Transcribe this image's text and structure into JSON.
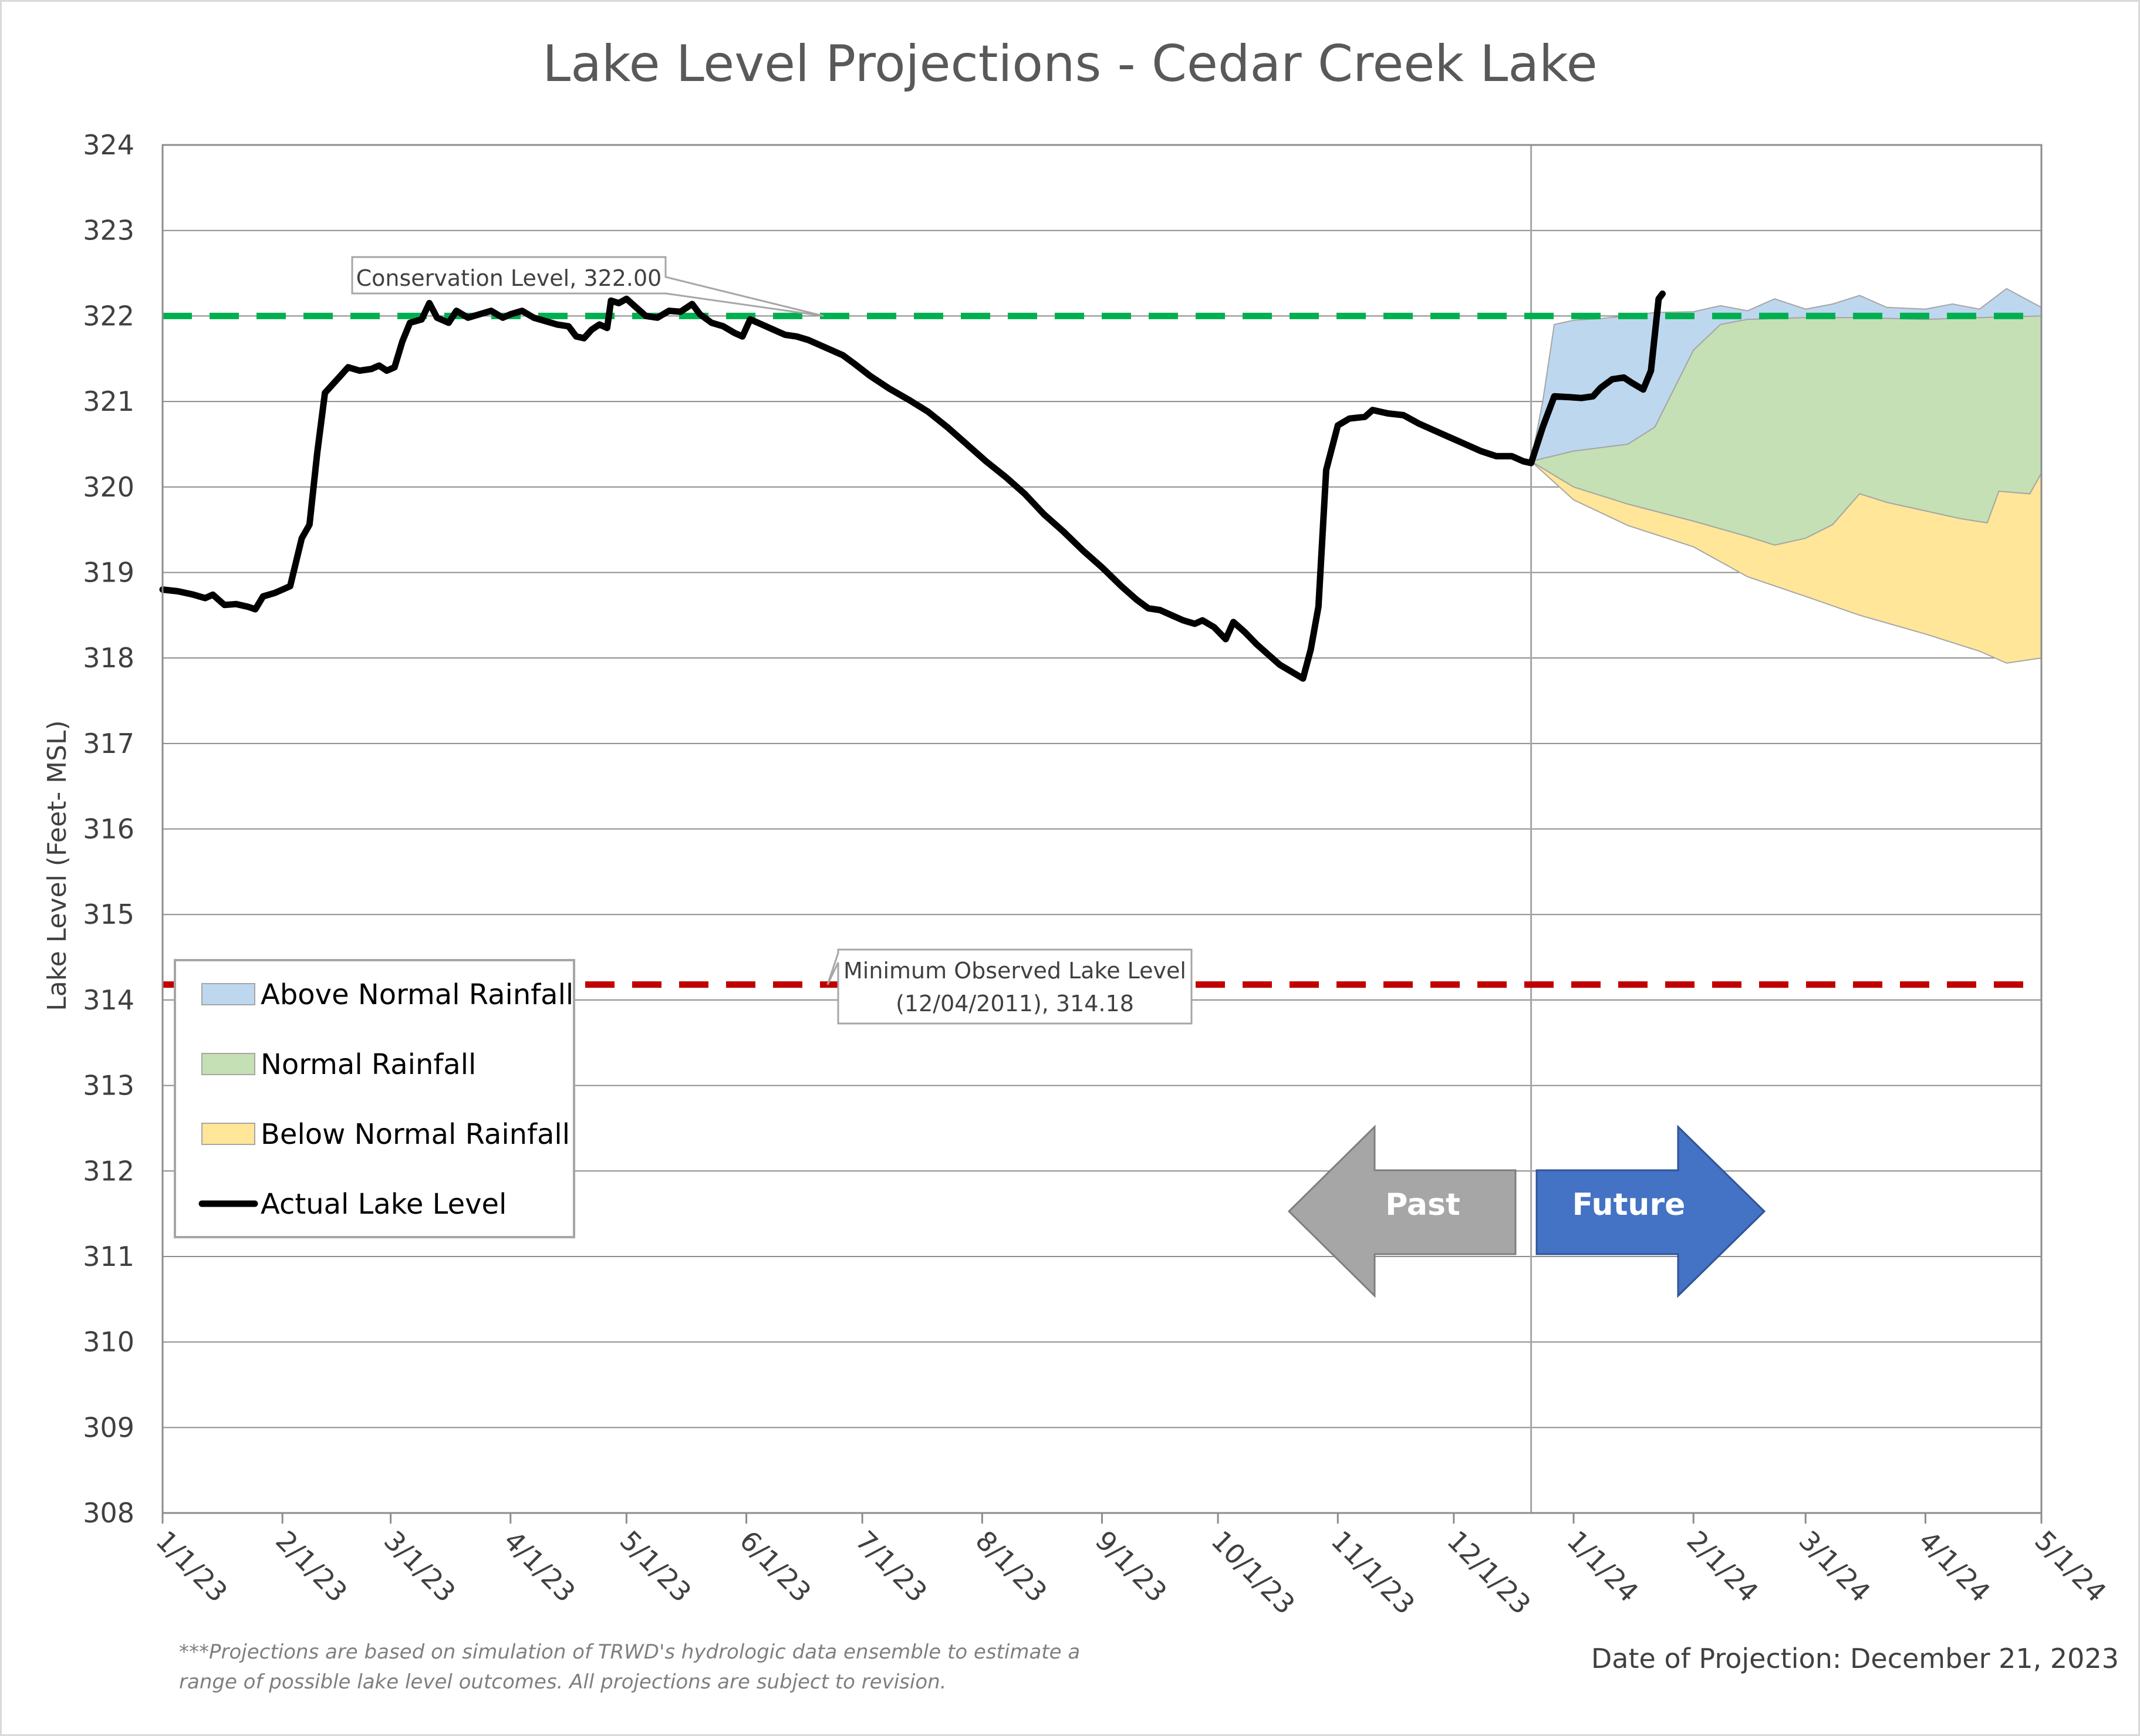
{
  "chart_data": {
    "type": "area",
    "title": "Lake Level Projections - Cedar Creek Lake",
    "ylabel": "Lake Level (Feet- MSL)",
    "xlabel": "",
    "ylim": [
      308,
      324
    ],
    "yticks": [
      308,
      309,
      310,
      311,
      312,
      313,
      314,
      315,
      316,
      317,
      318,
      319,
      320,
      321,
      322,
      323,
      324
    ],
    "xlim": [
      "2023-01-01",
      "2024-05-01"
    ],
    "xticks": [
      {
        "date": "2023-01-01",
        "label": "1/1/23"
      },
      {
        "date": "2023-02-01",
        "label": "2/1/23"
      },
      {
        "date": "2023-03-01",
        "label": "3/1/23"
      },
      {
        "date": "2023-04-01",
        "label": "4/1/23"
      },
      {
        "date": "2023-05-01",
        "label": "5/1/23"
      },
      {
        "date": "2023-06-01",
        "label": "6/1/23"
      },
      {
        "date": "2023-07-01",
        "label": "7/1/23"
      },
      {
        "date": "2023-08-01",
        "label": "8/1/23"
      },
      {
        "date": "2023-09-01",
        "label": "9/1/23"
      },
      {
        "date": "2023-10-01",
        "label": "10/1/23"
      },
      {
        "date": "2023-11-01",
        "label": "11/1/23"
      },
      {
        "date": "2023-12-01",
        "label": "12/1/23"
      },
      {
        "date": "2024-01-01",
        "label": "1/1/24"
      },
      {
        "date": "2024-02-01",
        "label": "2/1/24"
      },
      {
        "date": "2024-03-01",
        "label": "3/1/24"
      },
      {
        "date": "2024-04-01",
        "label": "4/1/24"
      },
      {
        "date": "2024-05-01",
        "label": "5/1/24"
      }
    ],
    "grid": true,
    "projection_date": "2023-12-21",
    "reference_lines": [
      {
        "name": "conservation",
        "value": 322.0,
        "color": "#00b050",
        "style": "dashed",
        "label": "Conservation Level, 322.00",
        "callout_date": "2023-06-21"
      },
      {
        "name": "minimum",
        "value": 314.18,
        "color": "#c00000",
        "style": "dashed",
        "label_lines": [
          "Minimum Observed Lake Level",
          "(12/04/2011), 314.18"
        ],
        "callout_date": "2023-06-22"
      }
    ],
    "series": [
      {
        "name": "Actual Lake Level",
        "color": "#000000",
        "kind": "line",
        "points": [
          [
            "2023-01-01",
            318.8
          ],
          [
            "2023-01-05",
            318.78
          ],
          [
            "2023-01-09",
            318.74
          ],
          [
            "2023-01-12",
            318.7
          ],
          [
            "2023-01-14",
            318.74
          ],
          [
            "2023-01-17",
            318.62
          ],
          [
            "2023-01-20",
            318.63
          ],
          [
            "2023-01-23",
            318.6
          ],
          [
            "2023-01-25",
            318.57
          ],
          [
            "2023-01-27",
            318.72
          ],
          [
            "2023-01-30",
            318.76
          ],
          [
            "2023-02-01",
            318.8
          ],
          [
            "2023-02-03",
            318.84
          ],
          [
            "2023-02-06",
            319.4
          ],
          [
            "2023-02-08",
            319.56
          ],
          [
            "2023-02-10",
            320.4
          ],
          [
            "2023-02-12",
            321.1
          ],
          [
            "2023-02-14",
            321.2
          ],
          [
            "2023-02-16",
            321.3
          ],
          [
            "2023-02-18",
            321.4
          ],
          [
            "2023-02-21",
            321.36
          ],
          [
            "2023-02-24",
            321.38
          ],
          [
            "2023-02-26",
            321.42
          ],
          [
            "2023-02-28",
            321.36
          ],
          [
            "2023-03-02",
            321.4
          ],
          [
            "2023-03-04",
            321.7
          ],
          [
            "2023-03-06",
            321.92
          ],
          [
            "2023-03-09",
            321.96
          ],
          [
            "2023-03-11",
            322.15
          ],
          [
            "2023-03-13",
            321.98
          ],
          [
            "2023-03-16",
            321.92
          ],
          [
            "2023-03-18",
            322.06
          ],
          [
            "2023-03-21",
            321.98
          ],
          [
            "2023-03-24",
            322.02
          ],
          [
            "2023-03-27",
            322.06
          ],
          [
            "2023-03-30",
            321.98
          ],
          [
            "2023-04-01",
            322.02
          ],
          [
            "2023-04-04",
            322.06
          ],
          [
            "2023-04-07",
            321.98
          ],
          [
            "2023-04-10",
            321.94
          ],
          [
            "2023-04-13",
            321.9
          ],
          [
            "2023-04-16",
            321.88
          ],
          [
            "2023-04-18",
            321.76
          ],
          [
            "2023-04-20",
            321.74
          ],
          [
            "2023-04-22",
            321.84
          ],
          [
            "2023-04-24",
            321.9
          ],
          [
            "2023-04-26",
            321.86
          ],
          [
            "2023-04-27",
            322.18
          ],
          [
            "2023-04-29",
            322.15
          ],
          [
            "2023-05-01",
            322.2
          ],
          [
            "2023-05-03",
            322.12
          ],
          [
            "2023-05-06",
            322.0
          ],
          [
            "2023-05-09",
            321.98
          ],
          [
            "2023-05-12",
            322.06
          ],
          [
            "2023-05-15",
            322.05
          ],
          [
            "2023-05-18",
            322.14
          ],
          [
            "2023-05-20",
            322.02
          ],
          [
            "2023-05-23",
            321.92
          ],
          [
            "2023-05-26",
            321.88
          ],
          [
            "2023-05-29",
            321.8
          ],
          [
            "2023-05-31",
            321.76
          ],
          [
            "2023-06-02",
            321.96
          ],
          [
            "2023-06-05",
            321.9
          ],
          [
            "2023-06-08",
            321.84
          ],
          [
            "2023-06-11",
            321.78
          ],
          [
            "2023-06-14",
            321.76
          ],
          [
            "2023-06-17",
            321.72
          ],
          [
            "2023-06-20",
            321.66
          ],
          [
            "2023-06-23",
            321.6
          ],
          [
            "2023-06-26",
            321.54
          ],
          [
            "2023-06-29",
            321.44
          ],
          [
            "2023-07-03",
            321.3
          ],
          [
            "2023-07-08",
            321.15
          ],
          [
            "2023-07-13",
            321.02
          ],
          [
            "2023-07-18",
            320.88
          ],
          [
            "2023-07-23",
            320.7
          ],
          [
            "2023-07-28",
            320.5
          ],
          [
            "2023-08-02",
            320.3
          ],
          [
            "2023-08-07",
            320.12
          ],
          [
            "2023-08-12",
            319.92
          ],
          [
            "2023-08-17",
            319.68
          ],
          [
            "2023-08-22",
            319.48
          ],
          [
            "2023-08-27",
            319.26
          ],
          [
            "2023-09-01",
            319.06
          ],
          [
            "2023-09-06",
            318.84
          ],
          [
            "2023-09-10",
            318.68
          ],
          [
            "2023-09-13",
            318.58
          ],
          [
            "2023-09-16",
            318.56
          ],
          [
            "2023-09-19",
            318.5
          ],
          [
            "2023-09-22",
            318.44
          ],
          [
            "2023-09-25",
            318.4
          ],
          [
            "2023-09-27",
            318.44
          ],
          [
            "2023-09-30",
            318.36
          ],
          [
            "2023-10-03",
            318.22
          ],
          [
            "2023-10-05",
            318.42
          ],
          [
            "2023-10-08",
            318.3
          ],
          [
            "2023-10-11",
            318.16
          ],
          [
            "2023-10-14",
            318.04
          ],
          [
            "2023-10-17",
            317.92
          ],
          [
            "2023-10-20",
            317.84
          ],
          [
            "2023-10-23",
            317.76
          ],
          [
            "2023-10-25",
            318.1
          ],
          [
            "2023-10-27",
            318.6
          ],
          [
            "2023-10-29",
            320.2
          ],
          [
            "2023-11-01",
            320.72
          ],
          [
            "2023-11-04",
            320.8
          ],
          [
            "2023-11-08",
            320.82
          ],
          [
            "2023-11-10",
            320.9
          ],
          [
            "2023-11-14",
            320.86
          ],
          [
            "2023-11-18",
            320.84
          ],
          [
            "2023-11-22",
            320.74
          ],
          [
            "2023-11-26",
            320.66
          ],
          [
            "2023-11-30",
            320.58
          ],
          [
            "2023-12-04",
            320.5
          ],
          [
            "2023-12-08",
            320.42
          ],
          [
            "2023-12-12",
            320.36
          ],
          [
            "2023-12-16",
            320.36
          ],
          [
            "2023-12-19",
            320.3
          ],
          [
            "2023-12-21",
            320.28
          ],
          [
            "2023-12-24",
            320.7
          ],
          [
            "2023-12-27",
            321.06
          ],
          [
            "2023-12-31",
            321.05
          ],
          [
            "2024-01-03",
            321.04
          ],
          [
            "2024-01-06",
            321.06
          ],
          [
            "2024-01-08",
            321.16
          ],
          [
            "2024-01-11",
            321.26
          ],
          [
            "2024-01-14",
            321.28
          ],
          [
            "2024-01-16",
            321.22
          ],
          [
            "2024-01-19",
            321.14
          ],
          [
            "2024-01-21",
            321.36
          ],
          [
            "2024-01-23",
            322.2
          ],
          [
            "2024-01-24",
            322.26
          ]
        ]
      },
      {
        "name": "Above Normal Rainfall",
        "color": "#bdd7ee",
        "kind": "band",
        "upper": [
          [
            "2023-12-21",
            320.3
          ],
          [
            "2023-12-24",
            321.0
          ],
          [
            "2023-12-27",
            321.9
          ],
          [
            "2024-01-01",
            321.95
          ],
          [
            "2024-01-08",
            321.97
          ],
          [
            "2024-01-15",
            322.0
          ],
          [
            "2024-01-22",
            322.04
          ],
          [
            "2024-02-01",
            322.05
          ],
          [
            "2024-02-08",
            322.12
          ],
          [
            "2024-02-15",
            322.06
          ],
          [
            "2024-02-22",
            322.2
          ],
          [
            "2024-03-01",
            322.08
          ],
          [
            "2024-03-08",
            322.14
          ],
          [
            "2024-03-15",
            322.24
          ],
          [
            "2024-03-22",
            322.1
          ],
          [
            "2024-04-01",
            322.08
          ],
          [
            "2024-04-08",
            322.14
          ],
          [
            "2024-04-15",
            322.08
          ],
          [
            "2024-04-22",
            322.32
          ],
          [
            "2024-05-01",
            322.1
          ]
        ],
        "lower": [
          [
            "2023-12-21",
            320.3
          ],
          [
            "2024-01-01",
            320.42
          ],
          [
            "2024-01-15",
            320.5
          ],
          [
            "2024-01-22",
            320.7
          ],
          [
            "2024-02-01",
            321.6
          ],
          [
            "2024-02-08",
            321.9
          ],
          [
            "2024-02-15",
            321.96
          ],
          [
            "2024-03-01",
            321.98
          ],
          [
            "2024-03-15",
            321.98
          ],
          [
            "2024-04-01",
            321.96
          ],
          [
            "2024-04-15",
            321.98
          ],
          [
            "2024-05-01",
            322.0
          ]
        ]
      },
      {
        "name": "Normal Rainfall",
        "color": "#c5e0b4",
        "kind": "band",
        "upper": [
          [
            "2023-12-21",
            320.3
          ],
          [
            "2024-01-01",
            320.42
          ],
          [
            "2024-01-15",
            320.5
          ],
          [
            "2024-01-22",
            320.7
          ],
          [
            "2024-02-01",
            321.6
          ],
          [
            "2024-02-08",
            321.9
          ],
          [
            "2024-02-15",
            321.96
          ],
          [
            "2024-03-01",
            321.98
          ],
          [
            "2024-03-15",
            321.98
          ],
          [
            "2024-04-01",
            321.96
          ],
          [
            "2024-04-15",
            321.98
          ],
          [
            "2024-05-01",
            322.0
          ]
        ],
        "lower": [
          [
            "2023-12-21",
            320.3
          ],
          [
            "2024-01-01",
            320.0
          ],
          [
            "2024-01-15",
            319.8
          ],
          [
            "2024-02-01",
            319.6
          ],
          [
            "2024-02-15",
            319.42
          ],
          [
            "2024-02-22",
            319.32
          ],
          [
            "2024-03-01",
            319.4
          ],
          [
            "2024-03-08",
            319.56
          ],
          [
            "2024-03-15",
            319.92
          ],
          [
            "2024-03-22",
            319.82
          ],
          [
            "2024-04-01",
            319.72
          ],
          [
            "2024-04-10",
            319.63
          ],
          [
            "2024-04-17",
            319.58
          ],
          [
            "2024-04-20",
            319.95
          ],
          [
            "2024-04-28",
            319.92
          ],
          [
            "2024-05-01",
            320.16
          ]
        ]
      },
      {
        "name": "Below Normal Rainfall",
        "color": "#ffe699",
        "kind": "band",
        "upper": [
          [
            "2023-12-21",
            320.3
          ],
          [
            "2024-01-01",
            320.0
          ],
          [
            "2024-01-15",
            319.8
          ],
          [
            "2024-02-01",
            319.6
          ],
          [
            "2024-02-15",
            319.42
          ],
          [
            "2024-02-22",
            319.32
          ],
          [
            "2024-03-01",
            319.4
          ],
          [
            "2024-03-08",
            319.56
          ],
          [
            "2024-03-15",
            319.92
          ],
          [
            "2024-03-22",
            319.82
          ],
          [
            "2024-04-01",
            319.72
          ],
          [
            "2024-04-10",
            319.63
          ],
          [
            "2024-04-17",
            319.58
          ],
          [
            "2024-04-20",
            319.95
          ],
          [
            "2024-04-28",
            319.92
          ],
          [
            "2024-05-01",
            320.16
          ]
        ],
        "lower": [
          [
            "2023-12-21",
            320.3
          ],
          [
            "2024-01-01",
            319.85
          ],
          [
            "2024-01-15",
            319.55
          ],
          [
            "2024-02-01",
            319.3
          ],
          [
            "2024-02-15",
            318.95
          ],
          [
            "2024-03-01",
            318.72
          ],
          [
            "2024-03-15",
            318.5
          ],
          [
            "2024-04-01",
            318.28
          ],
          [
            "2024-04-15",
            318.08
          ],
          [
            "2024-04-22",
            317.94
          ],
          [
            "2024-05-01",
            318.0
          ]
        ]
      }
    ],
    "legend": {
      "placement": "bottom-left",
      "entries": [
        {
          "label": "Above Normal Rainfall",
          "color": "#bdd7ee",
          "kind": "swatch"
        },
        {
          "label": "Normal Rainfall",
          "color": "#c5e0b4",
          "kind": "swatch"
        },
        {
          "label": "Below Normal Rainfall",
          "color": "#ffe699",
          "kind": "swatch"
        },
        {
          "label": "Actual Lake Level",
          "color": "#000000",
          "kind": "line"
        }
      ]
    },
    "arrows": [
      {
        "label": "Past",
        "direction": "left",
        "color": "#a6a6a6"
      },
      {
        "label": "Future",
        "direction": "right",
        "color": "#4472c4"
      }
    ],
    "footnote_lines": [
      "***Projections are based on simulation of TRWD's hydrologic data ensemble to estimate a",
      "range of possible lake level outcomes.  All projections are subject to revision."
    ],
    "projection_date_label": "Date of Projection: December 21, 2023"
  }
}
